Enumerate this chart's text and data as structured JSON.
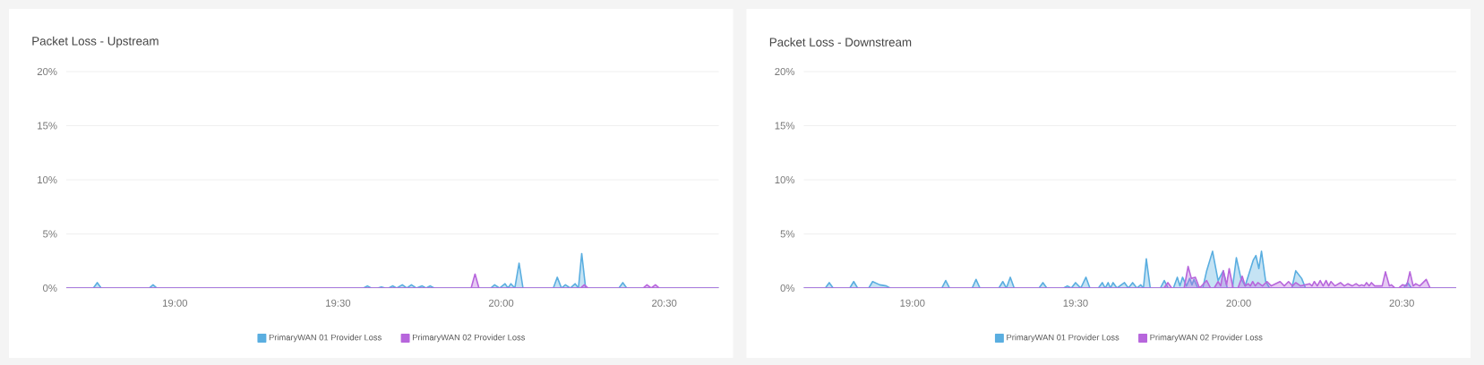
{
  "chart_data": [
    {
      "type": "area",
      "title": "Packet Loss - Upstream",
      "xlim": [
        18.667,
        20.667
      ],
      "ylim": [
        0,
        20
      ],
      "xticks": [
        {
          "value": 19,
          "label": "19:00"
        },
        {
          "value": 19.5,
          "label": "19:30"
        },
        {
          "value": 20,
          "label": "20:00"
        },
        {
          "value": 20.5,
          "label": "20:30"
        }
      ],
      "yticks": [
        {
          "value": 0,
          "label": "0%"
        },
        {
          "value": 5,
          "label": "5%"
        },
        {
          "value": 10,
          "label": "10%"
        },
        {
          "value": 15,
          "label": "15%"
        },
        {
          "value": 20,
          "label": "20%"
        }
      ],
      "grid": "y",
      "legend": "bottom",
      "marker": "none",
      "line_style": "solid",
      "series": [
        {
          "name": "PrimaryWAN 01 Provider Loss",
          "color": "#5aaee0",
          "x": [
            18.667,
            18.75,
            18.762,
            18.774,
            18.921,
            18.933,
            18.945,
            19.578,
            19.59,
            19.602,
            19.621,
            19.633,
            19.645,
            19.655,
            19.667,
            19.68,
            19.697,
            19.711,
            19.725,
            19.74,
            19.758,
            19.77,
            19.783,
            19.795,
            19.968,
            19.98,
            19.995,
            20.012,
            20.021,
            20.03,
            20.042,
            20.055,
            20.067,
            20.16,
            20.172,
            20.185,
            20.197,
            20.212,
            20.227,
            20.237,
            20.247,
            20.259,
            20.361,
            20.373,
            20.385,
            20.667
          ],
          "values": [
            0,
            0,
            0.5,
            0,
            0,
            0.3,
            0,
            0,
            0.2,
            0,
            0,
            0.1,
            0,
            0,
            0.2,
            0,
            0.3,
            0,
            0.3,
            0,
            0.2,
            0,
            0.2,
            0,
            0,
            0.3,
            0,
            0.4,
            0,
            0.4,
            0,
            2.3,
            0,
            0,
            1.0,
            0,
            0.3,
            0,
            0.4,
            0,
            3.2,
            0,
            0,
            0.5,
            0,
            0
          ]
        },
        {
          "name": "PrimaryWAN 02 Provider Loss",
          "color": "#b766dc",
          "x": [
            18.667,
            19.908,
            19.92,
            19.932,
            20.243,
            20.255,
            20.267,
            20.435,
            20.447,
            20.46,
            20.473,
            20.485,
            20.667
          ],
          "values": [
            0,
            0,
            1.3,
            0,
            0,
            0.3,
            0,
            0,
            0.3,
            0,
            0.3,
            0,
            0
          ]
        }
      ]
    },
    {
      "type": "area",
      "title": "Packet Loss - Downstream",
      "xlim": [
        18.667,
        20.667
      ],
      "ylim": [
        0,
        20
      ],
      "xticks": [
        {
          "value": 19,
          "label": "19:00"
        },
        {
          "value": 19.5,
          "label": "19:30"
        },
        {
          "value": 20,
          "label": "20:00"
        },
        {
          "value": 20.5,
          "label": "20:30"
        }
      ],
      "yticks": [
        {
          "value": 0,
          "label": "0%"
        },
        {
          "value": 5,
          "label": "5%"
        },
        {
          "value": 10,
          "label": "10%"
        },
        {
          "value": 15,
          "label": "15%"
        },
        {
          "value": 20,
          "label": "20%"
        }
      ],
      "grid": "y",
      "legend": "bottom",
      "marker": "none",
      "line_style": "solid",
      "series": [
        {
          "name": "PrimaryWAN 01 Provider Loss",
          "color": "#5aaee0",
          "x": [
            18.667,
            18.733,
            18.745,
            18.757,
            18.808,
            18.82,
            18.832,
            18.866,
            18.878,
            18.9,
            18.92,
            18.932,
            19.09,
            19.102,
            19.114,
            19.183,
            19.195,
            19.207,
            19.265,
            19.277,
            19.288,
            19.3,
            19.312,
            19.388,
            19.4,
            19.412,
            19.463,
            19.475,
            19.487,
            19.5,
            19.516,
            19.532,
            19.544,
            19.57,
            19.582,
            19.591,
            19.6,
            19.607,
            19.615,
            19.627,
            19.65,
            19.662,
            19.675,
            19.688,
            19.7,
            19.708,
            19.717,
            19.729,
            19.76,
            19.772,
            19.784,
            19.8,
            19.812,
            19.82,
            19.828,
            19.84,
            19.85,
            19.857,
            19.863,
            19.875,
            19.89,
            19.902,
            19.92,
            19.937,
            19.953,
            19.965,
            19.981,
            19.993,
            20.007,
            20.02,
            20.045,
            20.053,
            20.062,
            20.07,
            20.083,
            20.095,
            20.163,
            20.175,
            20.193,
            20.205,
            20.506,
            20.518,
            20.53,
            20.667
          ],
          "values": [
            0,
            0,
            0.5,
            0,
            0,
            0.6,
            0,
            0,
            0.6,
            0.3,
            0.2,
            0,
            0,
            0.7,
            0,
            0,
            0.8,
            0,
            0,
            0.6,
            0,
            1.0,
            0,
            0,
            0.5,
            0,
            0,
            0.2,
            0,
            0.5,
            0,
            1.0,
            0,
            0,
            0.5,
            0,
            0.5,
            0,
            0.5,
            0,
            0.5,
            0,
            0.5,
            0,
            0.3,
            0,
            2.7,
            0,
            0,
            0.7,
            0,
            0,
            1.0,
            0.2,
            1.0,
            0.2,
            0.9,
            0.3,
            0.8,
            0,
            0,
            1.6,
            3.4,
            0.7,
            1.6,
            0,
            0,
            2.8,
            0.9,
            0.2,
            2.6,
            3.0,
            1.8,
            3.4,
            0.6,
            0,
            0,
            1.6,
            0.9,
            0,
            0,
            0.5,
            0,
            0
          ]
        },
        {
          "name": "PrimaryWAN 02 Provider Loss",
          "color": "#b766dc",
          "x": [
            18.667,
            19.771,
            19.783,
            19.795,
            19.833,
            19.845,
            19.855,
            19.867,
            19.88,
            19.902,
            19.914,
            19.925,
            19.937,
            19.945,
            19.953,
            19.963,
            19.971,
            19.983,
            19.998,
            20.011,
            20.02,
            20.029,
            20.036,
            20.043,
            20.051,
            20.059,
            20.073,
            20.087,
            20.1,
            20.127,
            20.14,
            20.153,
            20.165,
            20.175,
            20.19,
            20.217,
            20.225,
            20.232,
            20.241,
            20.25,
            20.259,
            20.268,
            20.276,
            20.283,
            20.295,
            20.312,
            20.324,
            20.335,
            20.348,
            20.36,
            20.37,
            20.377,
            20.385,
            20.392,
            20.4,
            20.407,
            20.417,
            20.425,
            20.44,
            20.45,
            20.462,
            20.468,
            20.48,
            20.49,
            20.502,
            20.515,
            20.525,
            20.535,
            20.543,
            20.555,
            20.575,
            20.587,
            20.667
          ],
          "values": [
            0,
            0,
            0.5,
            0,
            0,
            2.0,
            0.9,
            1.0,
            0,
            0.7,
            0,
            0,
            0.6,
            0.2,
            1.6,
            0.3,
            1.8,
            0,
            0,
            1.1,
            0.2,
            0.4,
            0.2,
            0.6,
            0.2,
            0.5,
            0.2,
            0.6,
            0.2,
            0.6,
            0.2,
            0.6,
            0.2,
            0.5,
            0.2,
            0.4,
            0.2,
            0.6,
            0.2,
            0.7,
            0.2,
            0.7,
            0.2,
            0.6,
            0.2,
            0.5,
            0.2,
            0.4,
            0.2,
            0.4,
            0.2,
            0.3,
            0.2,
            0.5,
            0.2,
            0.5,
            0.2,
            0.2,
            0.2,
            1.5,
            0.2,
            0.3,
            0,
            0,
            0.3,
            0.2,
            1.5,
            0.2,
            0.4,
            0.2,
            0.8,
            0,
            0
          ]
        }
      ]
    }
  ]
}
